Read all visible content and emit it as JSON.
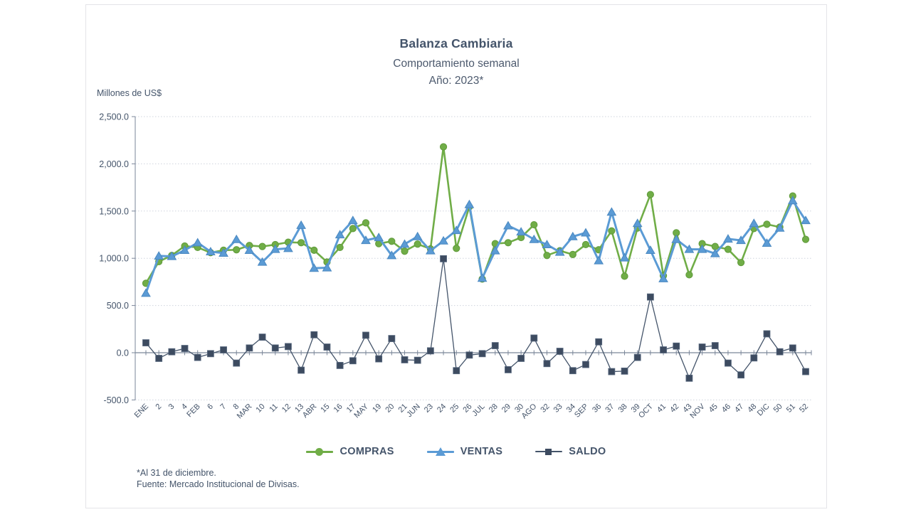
{
  "header": {
    "title": "Balanza Cambiaria",
    "subtitle1": "Comportamiento semanal",
    "subtitle2": "Año: 2023*"
  },
  "chart_data": {
    "type": "line",
    "title": "Balanza Cambiaria",
    "subtitle": "Comportamiento semanal",
    "year_note": "Año: 2023*",
    "unit_label": "Millones de US$",
    "xlabel": "",
    "ylabel": "Millones de US$",
    "ylim": [
      -500,
      2500
    ],
    "ytick_step": 500,
    "ytick_values": [
      2500,
      2000,
      1500,
      1000,
      500,
      0,
      -500
    ],
    "ytick_labels": [
      "2,500.0",
      "2,000.0",
      "1,500.0",
      "1,000.0",
      "500.0",
      "0.0",
      "-500.0"
    ],
    "grid": true,
    "legend_position": "bottom",
    "categories": [
      "ENE",
      "2",
      "3",
      "4",
      "FEB",
      "6",
      "7",
      "8",
      "MAR",
      "10",
      "11",
      "12",
      "13",
      "ABR",
      "15",
      "16",
      "17",
      "MAY",
      "19",
      "20",
      "21",
      "JUN",
      "23",
      "24",
      "25",
      "26",
      "JUL",
      "28",
      "29",
      "30",
      "AGO",
      "32",
      "33",
      "34",
      "SEP",
      "36",
      "37",
      "38",
      "39",
      "OCT",
      "41",
      "42",
      "43",
      "NOV",
      "45",
      "46",
      "47",
      "48",
      "DIC",
      "50",
      "51",
      "52"
    ],
    "series": [
      {
        "name": "COMPRAS",
        "marker": "circle",
        "color": "#70AD47",
        "marker_stroke": "#5f9a3a",
        "line_width": 2.6,
        "values": [
          735,
          965,
          1030,
          1130,
          1115,
          1060,
          1085,
          1090,
          1135,
          1125,
          1145,
          1170,
          1165,
          1085,
          960,
          1115,
          1315,
          1375,
          1155,
          1180,
          1075,
          1150,
          1100,
          2180,
          1105,
          1545,
          780,
          1155,
          1165,
          1220,
          1355,
          1030,
          1080,
          1040,
          1145,
          1090,
          1290,
          810,
          1320,
          1675,
          815,
          1270,
          825,
          1155,
          1125,
          1095,
          955,
          1315,
          1360,
          1330,
          1660,
          1200
        ]
      },
      {
        "name": "VENTAS",
        "marker": "triangle",
        "color": "#5B9BD5",
        "marker_stroke": "#4a88c0",
        "line_width": 3,
        "values": [
          630,
          1025,
          1020,
          1085,
          1165,
          1070,
          1055,
          1200,
          1085,
          960,
          1095,
          1105,
          1350,
          895,
          900,
          1250,
          1400,
          1190,
          1220,
          1030,
          1150,
          1230,
          1080,
          1185,
          1295,
          1570,
          790,
          1080,
          1345,
          1280,
          1200,
          1145,
          1065,
          1230,
          1270,
          975,
          1490,
          1005,
          1370,
          1085,
          785,
          1200,
          1095,
          1095,
          1050,
          1205,
          1190,
          1370,
          1160,
          1320,
          1610,
          1400
        ]
      },
      {
        "name": "SALDO",
        "marker": "square",
        "color": "#44546A",
        "marker_fill": "#3d4b60",
        "marker_stroke": "#5a6a80",
        "line_width": 1.3,
        "values": [
          105,
          -60,
          10,
          45,
          -50,
          -10,
          30,
          -110,
          50,
          165,
          50,
          65,
          -185,
          190,
          60,
          -135,
          -85,
          185,
          -65,
          150,
          -75,
          -80,
          20,
          995,
          -190,
          -25,
          -10,
          75,
          -180,
          -60,
          155,
          -115,
          15,
          -190,
          -125,
          115,
          -200,
          -195,
          -50,
          590,
          30,
          70,
          -270,
          60,
          75,
          -110,
          -235,
          -55,
          200,
          10,
          50,
          -200
        ]
      }
    ]
  },
  "legend": {
    "items": [
      {
        "label": "COMPRAS"
      },
      {
        "label": "VENTAS"
      },
      {
        "label": "SALDO"
      }
    ]
  },
  "footnotes": {
    "line1": "*Al 31 de diciembre.",
    "line2": "Fuente: Mercado Institucional de Divisas."
  },
  "colors": {
    "compras": "#70AD47",
    "ventas": "#5B9BD5",
    "saldo": "#44546A",
    "grid": "#cfd4dd",
    "axis": "#7a8699",
    "tick_text": "#44546A",
    "title_text": "#44546A"
  }
}
